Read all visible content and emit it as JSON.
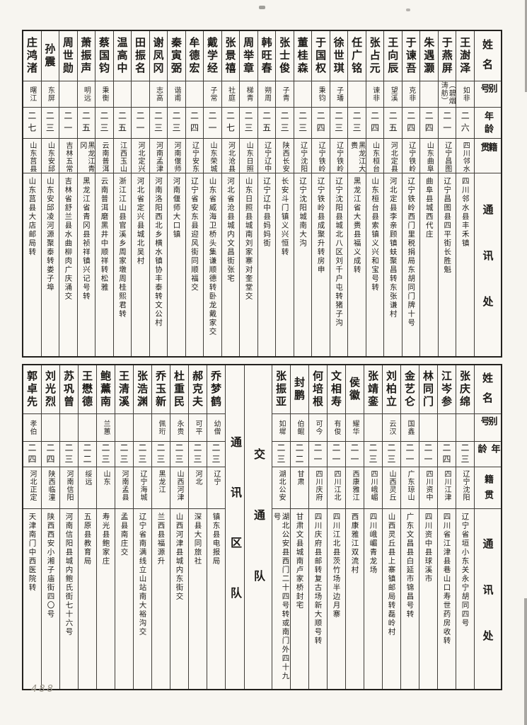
{
  "page": {
    "number": "488"
  },
  "headers": {
    "name": "姓名",
    "alias": "别号",
    "age": "年龄",
    "native": "籍贯",
    "address": "通讯处"
  },
  "top_table": {
    "entries": [
      {
        "name": "王澍泽",
        "alias": "如非",
        "age": "二六",
        "native": "四川邻水",
        "address": "四川邻水县丰禾镇"
      },
      {
        "name": "于燕屏",
        "alias": "（碧烟涛舫）",
        "age": "二一",
        "native": "辽宁昌图",
        "address": "辽宁昌图县四平街长胜魁"
      },
      {
        "name": "朱遇灏",
        "alias": "",
        "age": "二四",
        "native": "山东曲阜",
        "address": "曲阜县城西代庄"
      },
      {
        "name": "于谏吾",
        "alias": "克非",
        "age": "二四",
        "native": "辽宁铁岭",
        "address": "辽宁铁岭西门里税捐局东胡同门牌十号"
      },
      {
        "name": "王向辰",
        "alias": "望溪",
        "age": "二五",
        "native": "河北定县",
        "address": "河北定县李亲顾镇蚨聚昌转东张谦村"
      },
      {
        "name": "张占元",
        "alias": "谏非",
        "age": "二四",
        "native": "山东桓台",
        "address": "山东桓台县索镇义兴和宝号转"
      },
      {
        "name": "任广铭",
        "alias": "",
        "age": "二三",
        "native": "黑龙江大赉",
        "address": "黑龙江省大赉县福义成转"
      },
      {
        "name": "徐世琪",
        "alias": "子璠",
        "age": "二三",
        "native": "辽宁铁岭",
        "address": "辽宁沈阳县城北八区刘千户屯转猪子沟"
      },
      {
        "name": "于国权",
        "alias": "秉钧",
        "age": "二四",
        "native": "辽宁铁岭",
        "address": "辽宁铁岭县成聚升转房申"
      },
      {
        "name": "董桂森",
        "alias": "",
        "age": "二三",
        "native": "辽宁沈阳",
        "address": "辽宁沈阳城南大沟"
      },
      {
        "name": "张士俊",
        "alias": "子青",
        "age": "二三",
        "native": "陕西长安",
        "address": "长安斗门镇义兴恒转"
      },
      {
        "name": "韩旺春",
        "alias": "朔周",
        "age": "二五",
        "native": "辽宁辽中",
        "address": "辽宁辽中县妈妈街"
      },
      {
        "name": "周举章",
        "alias": "梯青",
        "age": "二三",
        "native": "山东日照",
        "address": "山东日照县城南刘家寨对奎堂交"
      },
      {
        "name": "张景禧",
        "alias": "社庭",
        "age": "二七",
        "native": "河北沧县",
        "address": "河北省沧县城内文昌街张宅"
      },
      {
        "name": "戴学经",
        "alias": "子常",
        "age": "二一",
        "native": "山东荣城",
        "address": "山东省威海卫桥头集谦顺德转卧龙戴家交"
      },
      {
        "name": "牟德宏",
        "alias": "",
        "age": "二四",
        "native": "辽宁安东",
        "address": "辽宁省安东县迎风街同顺福交"
      },
      {
        "name": "秦寅弼",
        "alias": "谐甫",
        "age": "二三",
        "native": "河南偃师",
        "address": "河南偃师大口镇"
      },
      {
        "name": "谢凤冈",
        "alias": "志高",
        "age": "二三",
        "native": "河南孟津",
        "address": "河南洛阳西北乡横水镇协丰泰转文公村"
      },
      {
        "name": "田振名",
        "alias": "",
        "age": "二一",
        "native": "河北定兴",
        "address": "河北省定兴县城北吴村"
      },
      {
        "name": "温高中",
        "alias": "",
        "age": "二五",
        "native": "江西玉山",
        "address": "浙江江山县官溪乡周家墩周桂熙君转"
      },
      {
        "name": "蔡国钧",
        "alias": "秉衡",
        "age": "二三",
        "native": "云南普洱",
        "address": "云南普洱磨黑井中顺祥转松雅"
      },
      {
        "name": "萧振声",
        "alias": "明远",
        "age": "二五",
        "native": "黑龙江青冈",
        "address": "黑龙江省青冈县祯祥镇兴记号转"
      },
      {
        "name": "周世勋",
        "alias": "",
        "age": "二一",
        "native": "吉林五常",
        "address": "吉林省舒兰县水曲柳肉广庆涌交"
      },
      {
        "name": "孙震",
        "alias": "东屏",
        "age": "二三",
        "native": "山东安邱",
        "address": "山东安邱凌河源聚泰转娄子埠"
      },
      {
        "name": "庄鸿渚",
        "alias": "曙江",
        "age": "二七",
        "native": "山东莒县",
        "address": "山东莒县大店邮局转"
      }
    ]
  },
  "bottom_table": {
    "right_entries": [
      {
        "name": "张庆绵",
        "alias": "",
        "age": "二三",
        "native": "辽宁沈阳",
        "address": "辽宁省垣小东关永宁胡同四号"
      },
      {
        "name": "江岑参",
        "alias": "",
        "age": "二四",
        "native": "四川江津",
        "address": "四川省江津县巷山口寿世药房收转"
      },
      {
        "name": "林同门",
        "alias": "",
        "age": "二一",
        "native": "四川资中",
        "address": "四川资中县球溪市"
      },
      {
        "name": "金艺仑",
        "alias": "国鑫",
        "age": "二一",
        "native": "广东琼山",
        "address": "广东文昌县白延市锦昌号转"
      },
      {
        "name": "刘柏立",
        "alias": "云汉",
        "age": "二三",
        "native": "山西灵丘",
        "address": "山西灵丘县上寨镇邮局转磊岭村"
      },
      {
        "name": "张靖銮",
        "alias": "",
        "age": "二三",
        "native": "四川峨嵋",
        "address": "四川峨嵋青龙场"
      },
      {
        "name": "侯徽",
        "alias": "耀华",
        "age": "二一",
        "native": "西康雅江",
        "address": "西康雅江双流村"
      },
      {
        "name": "文相寿",
        "alias": "有俊",
        "age": "二一",
        "native": "四川江北",
        "address": "四川江北县茨竹场半边月寨"
      },
      {
        "name": "何培根",
        "alias": "可今",
        "age": "二一",
        "native": "四川庆府",
        "address": "四川庆府县邮转复古场新大顺号转"
      },
      {
        "name": "封鹏",
        "alias": "伯鲲",
        "age": "二二",
        "native": "甘肃",
        "address": "甘肃文县城南卢家桥封宅"
      },
      {
        "name": "张振亚",
        "alias": "如墀",
        "age": "二三",
        "native": "湖北公安",
        "address": "湖北公安县西门二十四号转或南门外四十九号"
      }
    ],
    "units": [
      {
        "label": "交通队"
      },
      {
        "label": "通讯区队"
      }
    ],
    "left_entries": [
      {
        "name": "乔梦鹤",
        "alias": "幼僧",
        "age": "二三",
        "native": "辽宁",
        "address": "镇东县电报局"
      },
      {
        "name": "郝克夫",
        "alias": "可平",
        "age": "二三",
        "native": "河北",
        "address": "深县大同旅社"
      },
      {
        "name": "杜重民",
        "alias": "永贵",
        "age": "二三",
        "native": "山西河津",
        "address": "山西河津县城内东街交"
      },
      {
        "name": "乔玉新",
        "alias": "佩珩",
        "age": "二三",
        "native": "黑龙江",
        "address": "兰西县福源升"
      },
      {
        "name": "张浩渊",
        "alias": "",
        "age": "二三",
        "native": "辽宁海城",
        "address": "辽宁省南满线立山站南大裕沟交"
      },
      {
        "name": "王清溪",
        "alias": "",
        "age": "二三",
        "native": "河南孟县",
        "address": "孟县南庄交"
      },
      {
        "name": "鲍薰南",
        "alias": "兰蕙",
        "age": "二三",
        "native": "山东",
        "address": "寿光县鲍家庄"
      },
      {
        "name": "王懋德",
        "alias": "",
        "age": "二二",
        "native": "绥远",
        "address": "五原县教育局"
      },
      {
        "name": "苏巩曾",
        "alias": "",
        "age": "二三",
        "native": "河南信阳",
        "address": "河南信阳县城内鲍氏街七十六号"
      },
      {
        "name": "刘光烈",
        "alias": "",
        "age": "二四",
        "native": "陕西临潼",
        "address": "陕西西安小湘子庙街四〇号"
      },
      {
        "name": "郭卓先",
        "alias": "孝伯",
        "age": "二四",
        "native": "河北正定",
        "address": "天津南门中西医院转"
      }
    ]
  }
}
